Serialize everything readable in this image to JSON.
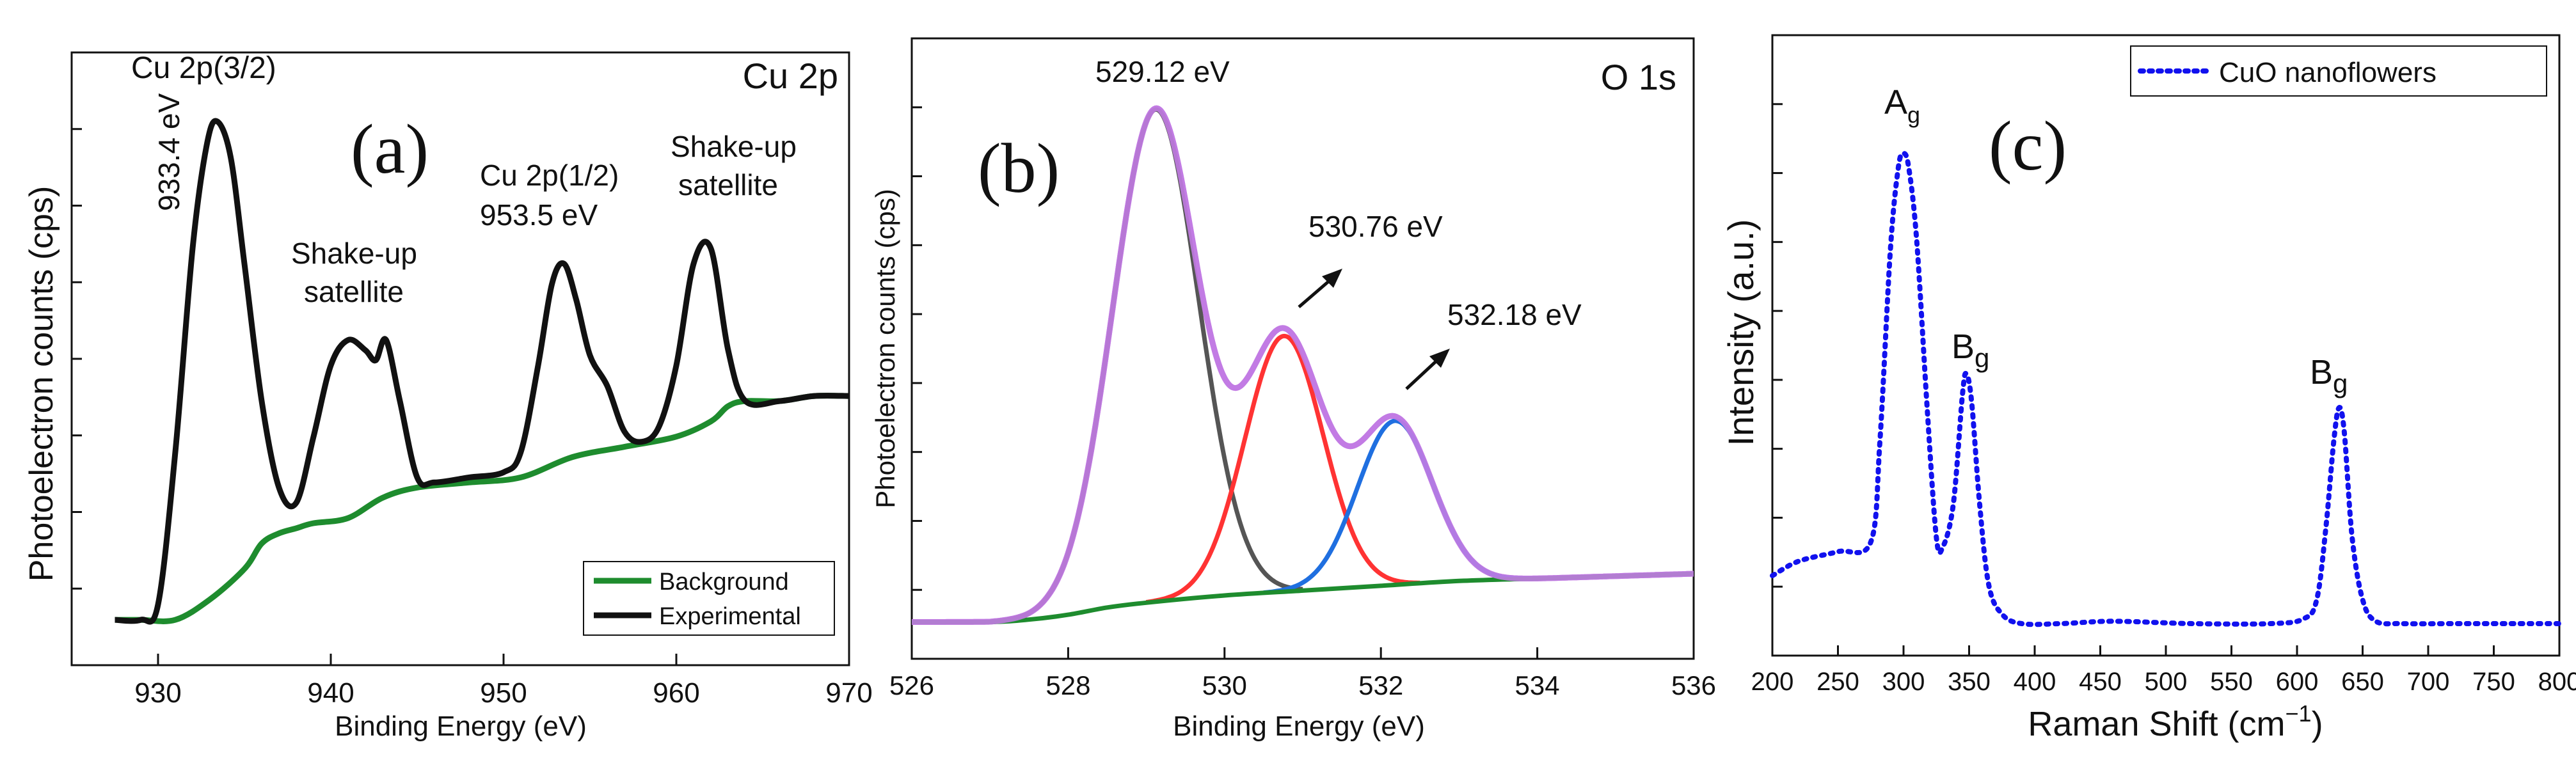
{
  "colors": {
    "black": "#111111",
    "green": "#1e8c2e",
    "purple": "#c27be3",
    "gray": "#555555",
    "red": "#ff3333",
    "blue": "#1f6fe0",
    "dotted_blue": "#1111ee"
  },
  "chart_data": [
    {
      "type": "line",
      "panel_label": "(a)",
      "title": "Cu 2p",
      "xlabel": "Binding Energy (eV)",
      "ylabel": "Photoelectron counts (cps)",
      "xlim": [
        925,
        970
      ],
      "ylim": [
        0,
        110
      ],
      "xticks": [
        "930",
        "940",
        "950",
        "960",
        "970"
      ],
      "legend": {
        "placement": "bottom-right",
        "entries": [
          "Background",
          "Experimental"
        ]
      },
      "annotations": [
        {
          "text": "Cu 2p(3/2)",
          "x": 933.4
        },
        {
          "text": "933.4 eV",
          "x": 933.4,
          "rotated": true
        },
        {
          "text": "Shake-up",
          "x": 942
        },
        {
          "text": "satellite",
          "x": 942
        },
        {
          "text": "Cu 2p(1/2)",
          "x": 953.5
        },
        {
          "text": "953.5 eV",
          "x": 953.5
        },
        {
          "text": "Shake-up",
          "x": 962
        },
        {
          "text": "satellite",
          "x": 962
        }
      ],
      "series": [
        {
          "name": "Experimental",
          "x": [
            927.5,
            929,
            930,
            931,
            932,
            932.8,
            933.4,
            934.2,
            935,
            936,
            937,
            938,
            939,
            940,
            941,
            942,
            942.6,
            943.2,
            944,
            945,
            946,
            948,
            950,
            951,
            952,
            952.8,
            953.5,
            954.2,
            955,
            956,
            957,
            958,
            959,
            960,
            961,
            962,
            963,
            964,
            966,
            968,
            970
          ],
          "values": [
            2,
            2,
            5,
            35,
            75,
            95,
            100,
            93,
            72,
            45,
            28,
            25,
            38,
            52,
            57,
            55,
            53,
            57,
            45,
            30,
            29,
            30,
            31,
            35,
            52,
            68,
            72,
            65,
            54,
            48,
            39,
            37,
            40,
            52,
            72,
            75,
            55,
            45,
            45,
            46,
            46
          ]
        },
        {
          "name": "Background",
          "x": [
            927.5,
            929,
            931,
            933,
            935,
            936,
            937,
            938,
            939,
            941,
            943,
            945,
            948,
            951,
            954,
            957,
            960,
            962,
            963,
            964,
            966,
            968,
            970
          ],
          "values": [
            2,
            2,
            2,
            6,
            12,
            17,
            19,
            20,
            21,
            22,
            26,
            28,
            29,
            30,
            34,
            36,
            38,
            41,
            44,
            45,
            45,
            46,
            46
          ]
        }
      ]
    },
    {
      "type": "line",
      "panel_label": "(b)",
      "title": "O 1s",
      "xlabel": "Binding Energy (eV)",
      "ylabel": "Photoelectron counts (cps)",
      "xlim": [
        526,
        536
      ],
      "ylim": [
        0,
        110
      ],
      "xticks": [
        "526",
        "528",
        "530",
        "532",
        "534",
        "536"
      ],
      "annotations": [
        {
          "text": "529.12 eV",
          "x": 529.12
        },
        {
          "text": "530.76 eV",
          "x": 530.76
        },
        {
          "text": "532.18 eV",
          "x": 532.18
        }
      ],
      "series": [
        {
          "name": "Background",
          "x": [
            526,
            527,
            527.5,
            528,
            528.5,
            529,
            530,
            531,
            532,
            533,
            534,
            535,
            536
          ],
          "values": [
            1,
            1,
            1.5,
            2.5,
            4,
            5,
            6.5,
            7.5,
            8.5,
            9.5,
            10,
            10.5,
            11
          ]
        },
        {
          "name": "Peak 529.12 eV",
          "center": 529.12,
          "amplitude": 102,
          "sigma": 0.55,
          "range": [
            527,
            531
          ]
        },
        {
          "name": "Peak 530.76 eV",
          "center": 530.76,
          "amplitude": 53,
          "sigma": 0.5,
          "range": [
            529,
            532.5
          ]
        },
        {
          "name": "Peak 532.18 eV",
          "center": 532.18,
          "amplitude": 34,
          "sigma": 0.48,
          "range": [
            530.5,
            534
          ]
        },
        {
          "name": "Envelope",
          "range": [
            526,
            536
          ]
        }
      ]
    },
    {
      "type": "line",
      "panel_label": "(c)",
      "xlabel": "Raman Shift (cm",
      "xlabel_sup": "−1",
      "xlabel_end": ")",
      "ylabel": "Intensity (a.u.)",
      "xlim": [
        200,
        800
      ],
      "ylim": [
        0,
        110
      ],
      "xticks": [
        "200",
        "250",
        "300",
        "350",
        "400",
        "450",
        "500",
        "550",
        "600",
        "650",
        "700",
        "750",
        "800"
      ],
      "legend": {
        "placement": "top-right",
        "entries": [
          "CuO nanoflowers"
        ]
      },
      "annotations": [
        {
          "text": "A",
          "sub": "g",
          "x": 300
        },
        {
          "text": "B",
          "sub": "g",
          "x": 348
        },
        {
          "text": "B",
          "sub": "g",
          "x": 632
        }
      ],
      "series": [
        {
          "name": "CuO nanoflowers",
          "x": [
            200,
            220,
            250,
            275,
            282,
            290,
            296,
            300,
            304,
            310,
            318,
            325,
            330,
            338,
            345,
            348,
            352,
            358,
            365,
            375,
            390,
            420,
            460,
            520,
            580,
            605,
            615,
            622,
            628,
            632,
            636,
            642,
            650,
            660,
            680,
            720,
            760,
            800
          ],
          "values": [
            10,
            13,
            15,
            17,
            38,
            78,
            95,
            98,
            95,
            80,
            45,
            18,
            16,
            25,
            48,
            52,
            46,
            25,
            8,
            2,
            0,
            0,
            0.5,
            0,
            0,
            1,
            5,
            20,
            38,
            45,
            40,
            18,
            5,
            0.5,
            0,
            0,
            0,
            0
          ]
        }
      ]
    }
  ]
}
